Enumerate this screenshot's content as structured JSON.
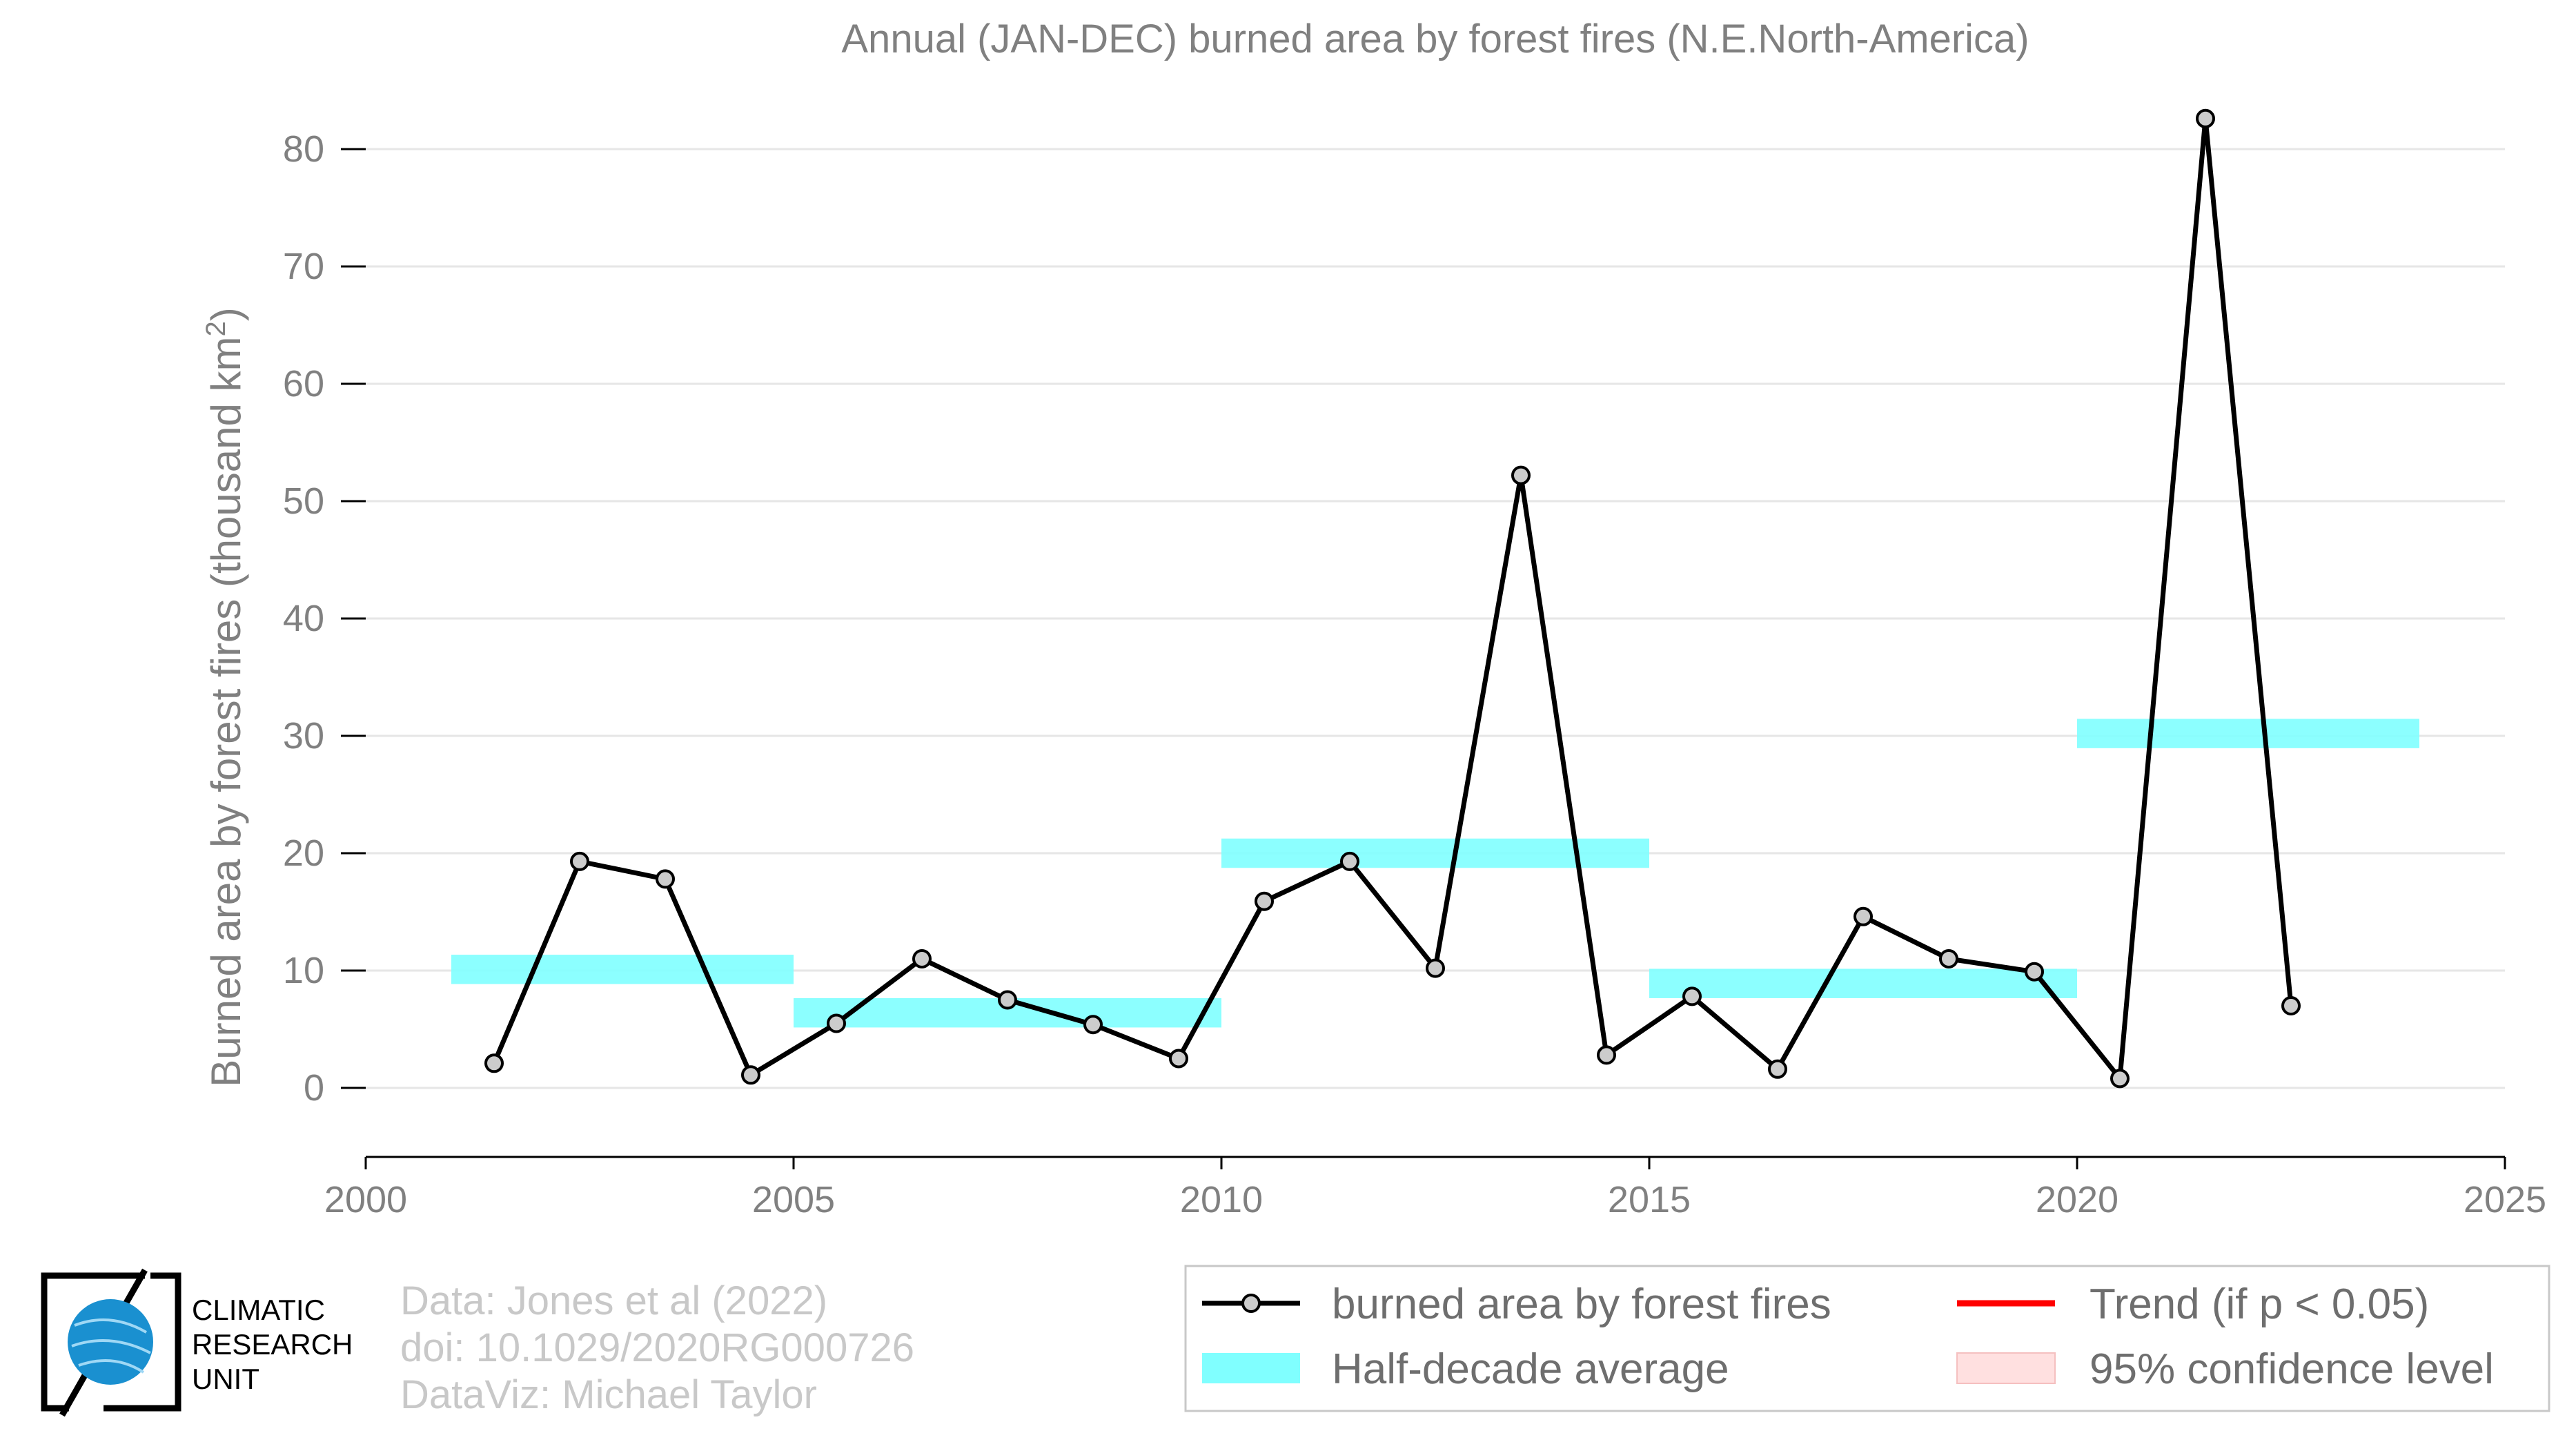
{
  "chart_data": {
    "type": "line",
    "title": "Annual (JAN-DEC) burned area by forest fires (N.E.North-America)",
    "ylabel": "Burned area by forest fires (thousand km",
    "ylabel_superscript": "2",
    "ylabel_suffix": ")",
    "xlabel": "",
    "xlim": [
      2000,
      2025
    ],
    "ylim": [
      -6,
      85
    ],
    "x_ticks": [
      2000,
      2005,
      2010,
      2015,
      2020,
      2025
    ],
    "y_ticks": [
      0,
      10,
      20,
      30,
      40,
      50,
      60,
      70,
      80
    ],
    "grid": "horizontal",
    "legend_position": "bottom-right",
    "series": [
      {
        "name": "burned area by forest fires",
        "color": "#000000",
        "marker_fill": "#cccccc",
        "x": [
          2001.5,
          2002.5,
          2003.5,
          2004.5,
          2005.5,
          2006.5,
          2007.5,
          2008.5,
          2009.5,
          2010.5,
          2011.5,
          2012.5,
          2013.5,
          2014.5,
          2015.5,
          2016.5,
          2017.5,
          2018.5,
          2019.5,
          2020.5,
          2021.5,
          2022.5
        ],
        "y": [
          2.1,
          19.3,
          17.8,
          1.1,
          5.5,
          11.0,
          7.5,
          5.4,
          2.5,
          15.9,
          19.3,
          10.2,
          52.2,
          2.8,
          7.8,
          1.6,
          14.6,
          11.0,
          9.9,
          0.8,
          82.6,
          7.0
        ]
      }
    ],
    "half_decade_average": {
      "name": "Half-decade average",
      "color": "#80ffff",
      "segments": [
        {
          "x0": 2001,
          "x1": 2005,
          "y": 10.1
        },
        {
          "x0": 2005,
          "x1": 2010,
          "y": 6.4
        },
        {
          "x0": 2010,
          "x1": 2015,
          "y": 20.0
        },
        {
          "x0": 2015,
          "x1": 2020,
          "y": 8.9
        },
        {
          "x0": 2020,
          "x1": 2024,
          "y": 30.2
        }
      ]
    },
    "legend": [
      {
        "label": "burned area by forest fires",
        "kind": "line-marker",
        "color": "#000000"
      },
      {
        "label": "Trend (if p < 0.05)",
        "kind": "line",
        "color": "#ff0000"
      },
      {
        "label": "Half-decade average",
        "kind": "band",
        "color": "#80ffff"
      },
      {
        "label": "95% confidence level",
        "kind": "band",
        "color": "#ffe0e0"
      }
    ]
  },
  "credits": {
    "line1": "Data: Jones et al (2022)",
    "line2": "doi: 10.1029/2020RG000726",
    "line3": "DataViz: Michael Taylor"
  },
  "logo": {
    "line1": "CLIMATIC",
    "line2": "RESEARCH",
    "line3": "UNIT",
    "globe_color": "#1a90d0"
  }
}
